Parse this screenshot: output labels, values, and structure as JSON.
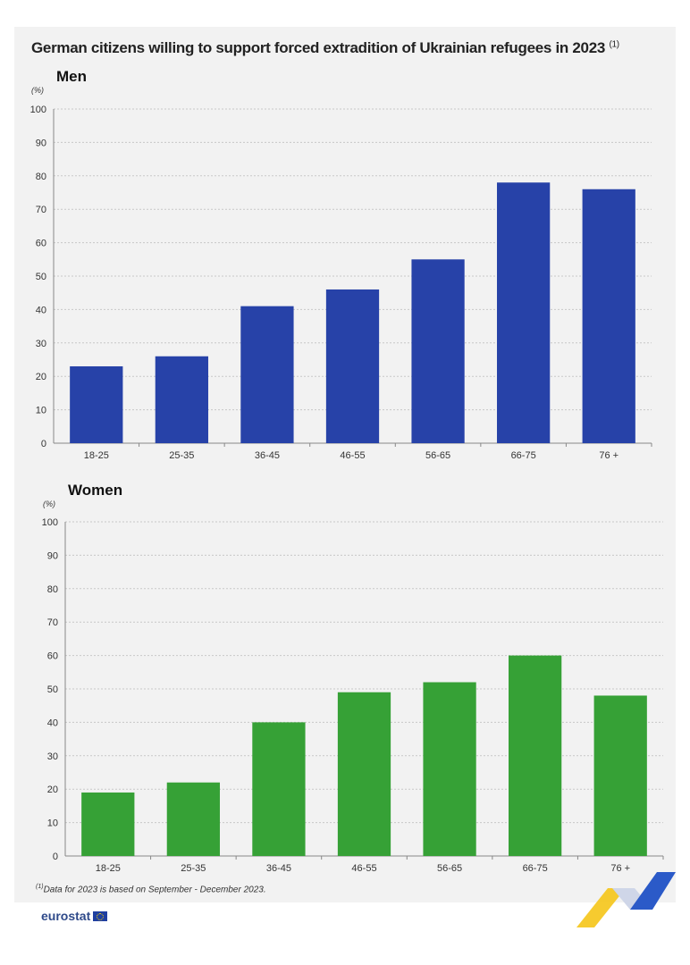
{
  "title": "German citizens willing to support forced extradition of Ukrainian refugees in 2023",
  "title_note": "(1)",
  "footnote_mark": "(1)",
  "footnote_text": "Data for 2023 is based on September  - December 2023.",
  "logo_text": "eurostat",
  "colors": {
    "men": "#2742a8",
    "women": "#36a136",
    "grid": "#c8c8c8",
    "axis": "#888888"
  },
  "chart_data": [
    {
      "type": "bar",
      "title": "Men",
      "ylabel": "(%)",
      "categories": [
        "18-25",
        "25-35",
        "36-45",
        "46-55",
        "56-65",
        "66-75",
        "76 +"
      ],
      "values": [
        23,
        26,
        41,
        46,
        55,
        78,
        76
      ],
      "ylim": [
        0,
        100
      ],
      "yticks": [
        "0",
        "10",
        "20",
        "30",
        "40",
        "50",
        "60",
        "70",
        "80",
        "90",
        "100"
      ],
      "grid": true
    },
    {
      "type": "bar",
      "title": "Women",
      "ylabel": "(%)",
      "categories": [
        "18-25",
        "25-35",
        "36-45",
        "46-55",
        "56-65",
        "66-75",
        "76 +"
      ],
      "values": [
        19,
        22,
        40,
        49,
        52,
        60,
        48
      ],
      "ylim": [
        0,
        100
      ],
      "yticks": [
        "0",
        "10",
        "20",
        "30",
        "40",
        "50",
        "60",
        "70",
        "80",
        "90",
        "100"
      ],
      "grid": true
    }
  ]
}
